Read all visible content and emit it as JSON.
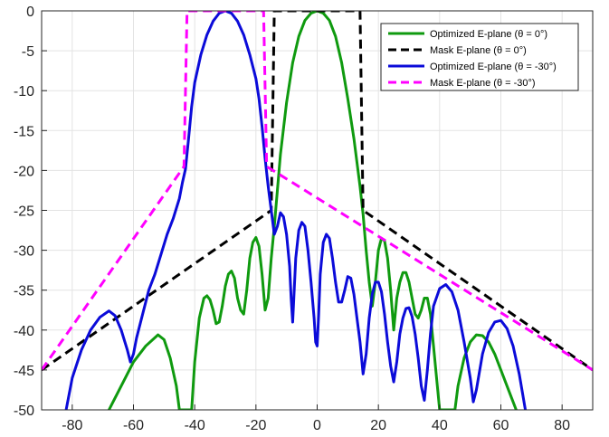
{
  "chart_data": {
    "type": "line",
    "xlim": [
      -90,
      90
    ],
    "ylim": [
      -50,
      0
    ],
    "xticks": [
      -80,
      -60,
      -40,
      -20,
      0,
      20,
      40,
      60,
      80
    ],
    "yticks": [
      0,
      -5,
      -10,
      -15,
      -20,
      -25,
      -30,
      -35,
      -40,
      -45,
      -50
    ],
    "grid": true,
    "legend_position": "top-right",
    "series": [
      {
        "name": "Optimized E-plane (θ = 0°)",
        "color": "#0f9a0f",
        "style": "solid",
        "points": [
          [
            -68,
            -50
          ],
          [
            -64,
            -47
          ],
          [
            -60,
            -44
          ],
          [
            -56,
            -42
          ],
          [
            -52,
            -40.6
          ],
          [
            -50,
            -41.2
          ],
          [
            -48,
            -43.5
          ],
          [
            -46,
            -47
          ],
          [
            -45,
            -50
          ],
          [
            -41,
            -50
          ],
          [
            -40,
            -44
          ],
          [
            -38.5,
            -38.5
          ],
          [
            -37,
            -36
          ],
          [
            -36,
            -35.7
          ],
          [
            -35,
            -36.2
          ],
          [
            -34,
            -37.5
          ],
          [
            -33,
            -39.2
          ],
          [
            -32,
            -39
          ],
          [
            -31,
            -37
          ],
          [
            -30,
            -34.5
          ],
          [
            -29,
            -33
          ],
          [
            -28,
            -32.6
          ],
          [
            -27,
            -33.5
          ],
          [
            -26,
            -36
          ],
          [
            -25,
            -37.5
          ],
          [
            -24,
            -38
          ],
          [
            -23,
            -35
          ],
          [
            -22,
            -31
          ],
          [
            -21,
            -29
          ],
          [
            -20,
            -28.4
          ],
          [
            -19,
            -29.5
          ],
          [
            -18,
            -33
          ],
          [
            -17,
            -37.5
          ],
          [
            -16,
            -36
          ],
          [
            -15,
            -31
          ],
          [
            -14,
            -27
          ],
          [
            -13,
            -22.5
          ],
          [
            -12,
            -18
          ],
          [
            -10,
            -11.5
          ],
          [
            -8,
            -6.5
          ],
          [
            -6,
            -3.2
          ],
          [
            -4,
            -1.2
          ],
          [
            -2,
            -0.3
          ],
          [
            0,
            0
          ],
          [
            2,
            -0.3
          ],
          [
            4,
            -1.2
          ],
          [
            6,
            -3.2
          ],
          [
            8,
            -6.5
          ],
          [
            10,
            -11
          ],
          [
            12,
            -16
          ],
          [
            14,
            -22
          ],
          [
            15,
            -25.5
          ],
          [
            16,
            -30
          ],
          [
            17,
            -34
          ],
          [
            18,
            -37
          ],
          [
            19,
            -34
          ],
          [
            20,
            -30
          ],
          [
            21,
            -28.5
          ],
          [
            22,
            -28.8
          ],
          [
            23,
            -31
          ],
          [
            24,
            -35
          ],
          [
            25,
            -40
          ],
          [
            26,
            -36
          ],
          [
            27,
            -34
          ],
          [
            28,
            -32.8
          ],
          [
            29,
            -32.8
          ],
          [
            30,
            -34
          ],
          [
            31,
            -36
          ],
          [
            32,
            -38
          ],
          [
            33,
            -38.5
          ],
          [
            34,
            -37.5
          ],
          [
            35,
            -36
          ],
          [
            36,
            -36
          ],
          [
            37,
            -38
          ],
          [
            38,
            -42
          ],
          [
            39,
            -46
          ],
          [
            40,
            -50
          ],
          [
            45,
            -50
          ],
          [
            46,
            -47
          ],
          [
            48,
            -43.5
          ],
          [
            50,
            -41.5
          ],
          [
            52,
            -40.6
          ],
          [
            54,
            -40.7
          ],
          [
            56,
            -41.5
          ],
          [
            58,
            -43
          ],
          [
            60,
            -45
          ],
          [
            62,
            -47
          ],
          [
            64,
            -49
          ],
          [
            65,
            -50
          ]
        ]
      },
      {
        "name": "Mask E-plane (θ = 0°)",
        "color": "#000000",
        "style": "dashed",
        "points": [
          [
            -90,
            -45
          ],
          [
            -15,
            -25
          ],
          [
            -14,
            0
          ],
          [
            14,
            0
          ],
          [
            15,
            -25
          ],
          [
            90,
            -45
          ]
        ]
      },
      {
        "name": "Optimized E-plane (θ = -30°)",
        "color": "#0b0bd9",
        "style": "solid",
        "points": [
          [
            -82,
            -50
          ],
          [
            -80,
            -46
          ],
          [
            -77,
            -42.5
          ],
          [
            -74,
            -40
          ],
          [
            -71,
            -38.4
          ],
          [
            -68,
            -37.6
          ],
          [
            -66,
            -38.2
          ],
          [
            -64,
            -40
          ],
          [
            -62,
            -42.5
          ],
          [
            -61,
            -44
          ],
          [
            -60,
            -43
          ],
          [
            -59,
            -41
          ],
          [
            -57,
            -38
          ],
          [
            -55,
            -35
          ],
          [
            -53,
            -33
          ],
          [
            -51,
            -30.5
          ],
          [
            -49,
            -28
          ],
          [
            -47,
            -26
          ],
          [
            -45,
            -23.5
          ],
          [
            -44,
            -21.5
          ],
          [
            -43,
            -19.8
          ],
          [
            -42,
            -16
          ],
          [
            -41,
            -12
          ],
          [
            -40,
            -9
          ],
          [
            -38,
            -5.5
          ],
          [
            -36,
            -3
          ],
          [
            -34,
            -1.3
          ],
          [
            -32,
            -0.3
          ],
          [
            -30,
            0
          ],
          [
            -28,
            -0.3
          ],
          [
            -26,
            -1.3
          ],
          [
            -24,
            -3
          ],
          [
            -22,
            -5.5
          ],
          [
            -20,
            -8.5
          ],
          [
            -19,
            -11
          ],
          [
            -18,
            -14.5
          ],
          [
            -17,
            -18.5
          ],
          [
            -16,
            -22
          ],
          [
            -15,
            -25
          ],
          [
            -14,
            -28
          ],
          [
            -13,
            -27
          ],
          [
            -12,
            -25.3
          ],
          [
            -11,
            -25.8
          ],
          [
            -10,
            -28
          ],
          [
            -9,
            -32
          ],
          [
            -8.5,
            -36
          ],
          [
            -8,
            -39
          ],
          [
            -7.5,
            -35
          ],
          [
            -7,
            -31
          ],
          [
            -6,
            -27.5
          ],
          [
            -5,
            -26.5
          ],
          [
            -4,
            -27
          ],
          [
            -3,
            -30
          ],
          [
            -2,
            -34
          ],
          [
            -1,
            -38.5
          ],
          [
            -0.5,
            -41.5
          ],
          [
            0,
            -42
          ],
          [
            0.5,
            -38
          ],
          [
            1,
            -33
          ],
          [
            2,
            -29
          ],
          [
            3,
            -28
          ],
          [
            4,
            -28.5
          ],
          [
            5,
            -31
          ],
          [
            6,
            -34
          ],
          [
            7,
            -36.5
          ],
          [
            8,
            -36.5
          ],
          [
            9,
            -35
          ],
          [
            10,
            -33.3
          ],
          [
            11,
            -33.5
          ],
          [
            12,
            -35.5
          ],
          [
            13,
            -38.5
          ],
          [
            14,
            -41.5
          ],
          [
            15,
            -45.5
          ],
          [
            16,
            -43
          ],
          [
            17,
            -38.5
          ],
          [
            18,
            -35.5
          ],
          [
            19,
            -34
          ],
          [
            20,
            -34
          ],
          [
            21,
            -35.2
          ],
          [
            22,
            -38
          ],
          [
            23,
            -41.5
          ],
          [
            24,
            -44.5
          ],
          [
            25,
            -46.5
          ],
          [
            26,
            -44
          ],
          [
            27,
            -40.5
          ],
          [
            28,
            -38.5
          ],
          [
            29,
            -37.3
          ],
          [
            30,
            -37.2
          ],
          [
            31,
            -38.3
          ],
          [
            32,
            -40.5
          ],
          [
            33,
            -43.5
          ],
          [
            34,
            -47
          ],
          [
            35,
            -48.8
          ],
          [
            36,
            -45
          ],
          [
            37,
            -40.5
          ],
          [
            38,
            -37
          ],
          [
            40,
            -34.8
          ],
          [
            42,
            -34.3
          ],
          [
            44,
            -35.2
          ],
          [
            46,
            -37.5
          ],
          [
            48,
            -41.5
          ],
          [
            50,
            -46
          ],
          [
            51,
            -49
          ],
          [
            52,
            -47.5
          ],
          [
            54,
            -43
          ],
          [
            56,
            -40.3
          ],
          [
            58,
            -39
          ],
          [
            60,
            -38.8
          ],
          [
            62,
            -39.8
          ],
          [
            64,
            -42
          ],
          [
            66,
            -45.5
          ],
          [
            68,
            -50
          ]
        ]
      },
      {
        "name": "Mask E-plane (θ = -30°)",
        "color": "#ff00ff",
        "style": "dashed",
        "points": [
          [
            -90,
            -45
          ],
          [
            -43.5,
            -19.5
          ],
          [
            -42.5,
            0
          ],
          [
            -17.5,
            0
          ],
          [
            -16.5,
            -19.5
          ],
          [
            90,
            -45
          ]
        ]
      }
    ]
  }
}
